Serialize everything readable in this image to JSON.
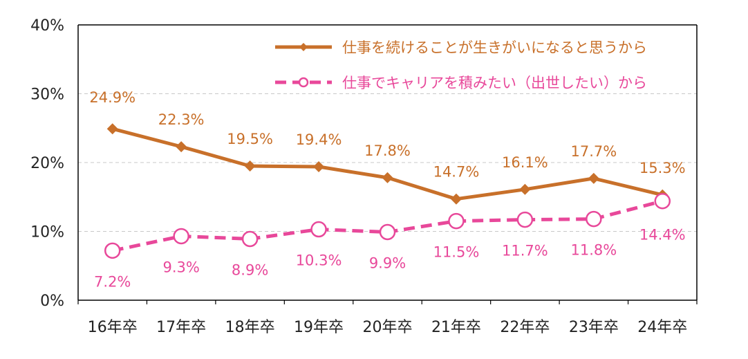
{
  "chart_data": {
    "type": "line",
    "categories": [
      "16年卒",
      "17年卒",
      "18年卒",
      "19年卒",
      "20年卒",
      "21年卒",
      "22年卒",
      "23年卒",
      "24年卒"
    ],
    "ylim": [
      0,
      40
    ],
    "yticks": [
      {
        "value": 0,
        "label": "0%"
      },
      {
        "value": 10,
        "label": "10%"
      },
      {
        "value": 20,
        "label": "20%"
      },
      {
        "value": 30,
        "label": "30%"
      },
      {
        "value": 40,
        "label": "40%"
      }
    ],
    "grid": true,
    "legend_position": "top-right",
    "series": [
      {
        "name": "仕事を続けることが生きがいになると思うから",
        "color": "#C8702A",
        "marker": "diamond",
        "line_style": "solid",
        "values": [
          24.9,
          22.3,
          19.5,
          19.4,
          17.8,
          14.7,
          16.1,
          17.7,
          15.3
        ],
        "labels": [
          "24.9%",
          "22.3%",
          "19.5%",
          "19.4%",
          "17.8%",
          "14.7%",
          "16.1%",
          "17.7%",
          "15.3%"
        ]
      },
      {
        "name": "仕事でキャリアを積みたい（出世したい）から",
        "color": "#E8489A",
        "marker": "open-circle",
        "line_style": "dashed",
        "values": [
          7.2,
          9.3,
          8.9,
          10.3,
          9.9,
          11.5,
          11.7,
          11.8,
          14.4
        ],
        "labels": [
          "7.2%",
          "9.3%",
          "8.9%",
          "10.3%",
          "9.9%",
          "11.5%",
          "11.7%",
          "11.8%",
          "14.4%"
        ]
      }
    ]
  }
}
